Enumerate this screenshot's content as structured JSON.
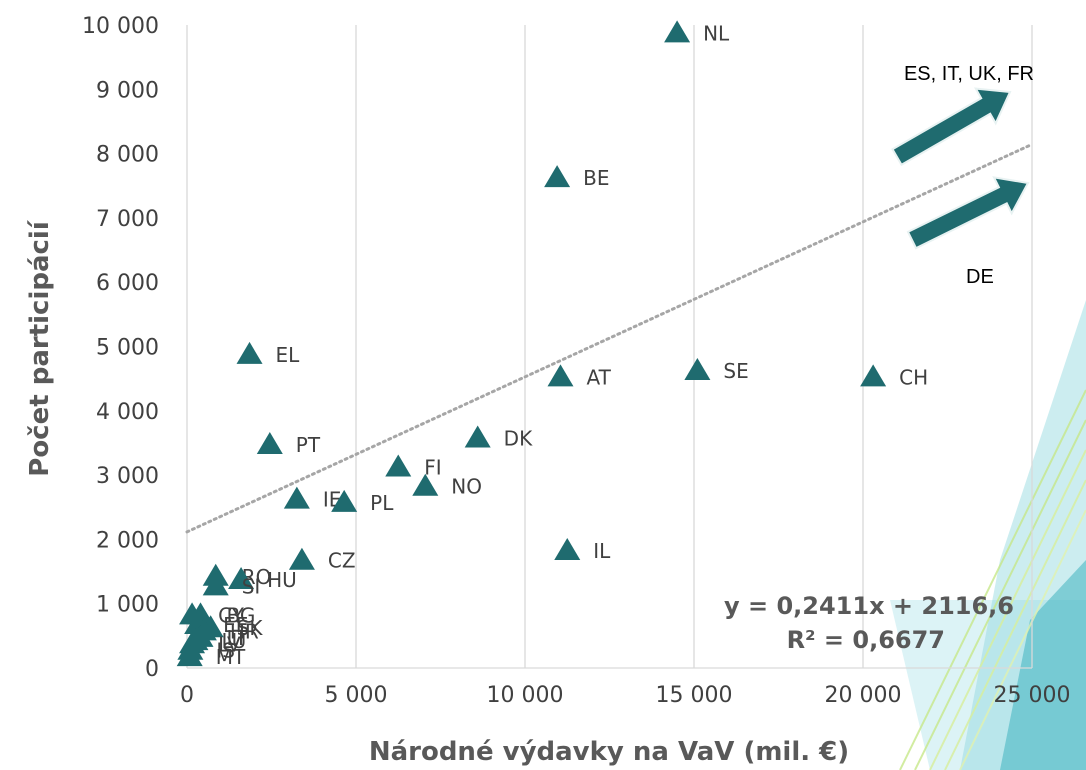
{
  "colors": {
    "marker": "#1f6b6f",
    "trend": "#a6a6a6",
    "grid": "#d9d9d9",
    "arrow": "#1f6b6f"
  },
  "chart_data": {
    "type": "scatter",
    "xlabel": "Národné výdavky na VaV (mil. €)",
    "ylabel": "Počet participácií",
    "xlim": [
      0,
      25000
    ],
    "ylim": [
      0,
      10000
    ],
    "x_ticks": [
      0,
      5000,
      10000,
      15000,
      20000,
      25000
    ],
    "x_tick_labels": [
      "0",
      "5 000",
      "10 000",
      "15 000",
      "20 000",
      "25 000"
    ],
    "y_ticks": [
      0,
      1000,
      2000,
      3000,
      4000,
      5000,
      6000,
      7000,
      8000,
      9000,
      10000
    ],
    "y_tick_labels": [
      "0",
      "1 000",
      "2 000",
      "3 000",
      "4 000",
      "5 000",
      "6 000",
      "7 000",
      "8 000",
      "9 000",
      "10 000"
    ],
    "grid": "vertical",
    "marker": "triangle",
    "points": [
      {
        "label": "NL",
        "x": 14500,
        "y": 9900
      },
      {
        "label": "BE",
        "x": 10950,
        "y": 7650
      },
      {
        "label": "EL",
        "x": 1850,
        "y": 4900
      },
      {
        "label": "AT",
        "x": 11050,
        "y": 4550
      },
      {
        "label": "SE",
        "x": 15100,
        "y": 4650
      },
      {
        "label": "CH",
        "x": 20300,
        "y": 4550
      },
      {
        "label": "PT",
        "x": 2450,
        "y": 3500
      },
      {
        "label": "DK",
        "x": 8600,
        "y": 3600
      },
      {
        "label": "FI",
        "x": 6250,
        "y": 3150
      },
      {
        "label": "NO",
        "x": 7050,
        "y": 2850
      },
      {
        "label": "IE",
        "x": 3250,
        "y": 2650
      },
      {
        "label": "PL",
        "x": 4650,
        "y": 2600
      },
      {
        "label": "IL",
        "x": 11250,
        "y": 1850
      },
      {
        "label": "CZ",
        "x": 3400,
        "y": 1700
      },
      {
        "label": "RO",
        "x": 850,
        "y": 1450
      },
      {
        "label": "HU",
        "x": 1600,
        "y": 1400
      },
      {
        "label": "SI",
        "x": 850,
        "y": 1300
      },
      {
        "label": "CY",
        "x": 150,
        "y": 850
      },
      {
        "label": "BG",
        "x": 400,
        "y": 850
      },
      {
        "label": "EE",
        "x": 300,
        "y": 700
      },
      {
        "label": "SK",
        "x": 700,
        "y": 650
      },
      {
        "label": "HR",
        "x": 500,
        "y": 600
      },
      {
        "label": "LT",
        "x": 400,
        "y": 500
      },
      {
        "label": "LU",
        "x": 250,
        "y": 450
      },
      {
        "label": "LV",
        "x": 150,
        "y": 400
      },
      {
        "label": "IS",
        "x": 100,
        "y": 300
      },
      {
        "label": "MT",
        "x": 80,
        "y": 200
      }
    ],
    "trendline": {
      "slope": 0.2411,
      "intercept": 2116.6,
      "equation": "y = 0,2411x + 2116,6",
      "r2_text": "R² = 0,6677"
    },
    "annotations": [
      {
        "text": "ES, IT, UK, FR"
      },
      {
        "text": "DE"
      }
    ]
  }
}
